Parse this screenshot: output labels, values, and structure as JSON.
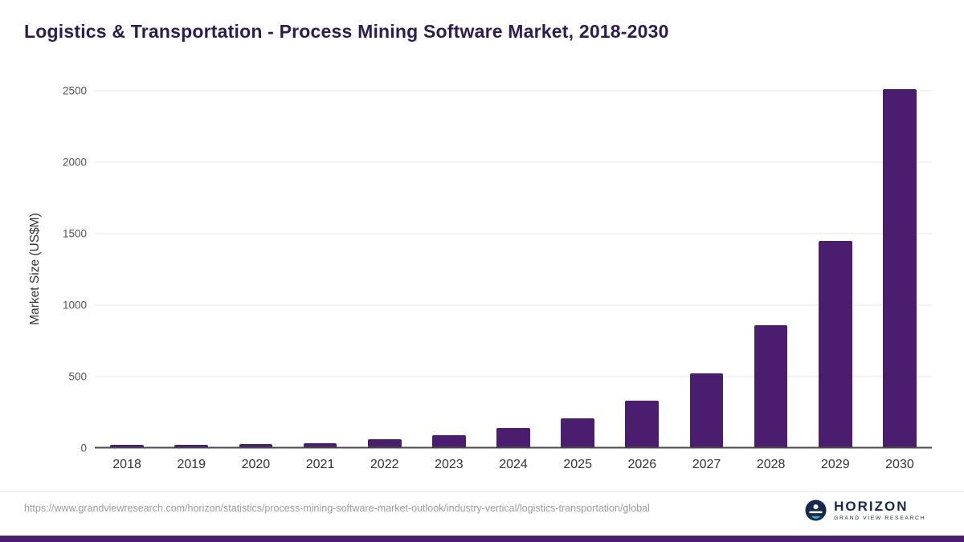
{
  "title": "Logistics & Transportation - Process Mining Software Market, 2018-2030",
  "chart_data": {
    "type": "bar",
    "title": "Logistics & Transportation - Process Mining Software Market, 2018-2030",
    "xlabel": "",
    "ylabel": "Market Size (US$M)",
    "categories": [
      "2018",
      "2019",
      "2020",
      "2021",
      "2022",
      "2023",
      "2024",
      "2025",
      "2026",
      "2027",
      "2028",
      "2029",
      "2030"
    ],
    "values": [
      20,
      25,
      27,
      35,
      60,
      90,
      140,
      210,
      330,
      525,
      860,
      1450,
      2510
    ],
    "ylim": [
      0,
      2500
    ],
    "yticks": [
      0,
      500,
      1000,
      1500,
      2000,
      2500
    ],
    "grid": true,
    "legend": "none",
    "bar_color": "#4a1d6e"
  },
  "footer": {
    "source_url": "https://www.grandviewresearch.com/horizon/statistics/process-mining-software-market-outlook/industry-vertical/logistics-transportation/global",
    "brand_name": "HORIZON",
    "brand_subtitle": "GRAND VIEW RESEARCH"
  },
  "colors": {
    "bar": "#4a1d6e",
    "title_text": "#301a52",
    "brand_navy": "#16294c",
    "bottom_strip": "#4a1d6e",
    "gridline": "#e8e8e8",
    "axis_line": "#4a4a4a"
  }
}
